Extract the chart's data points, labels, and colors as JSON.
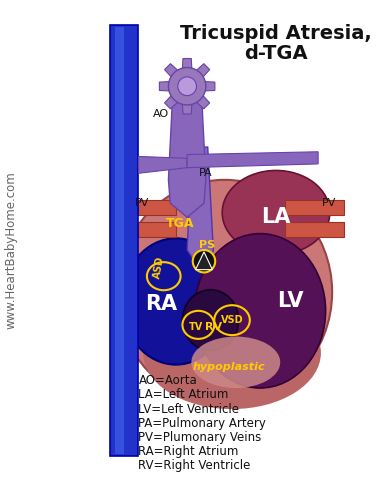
{
  "title_line1": "Tricuspid Atresia,",
  "title_line2": "d-TGA",
  "bg_color": "#ffffff",
  "legend_lines": [
    "AO=Aorta",
    "LA=Left Atrium",
    "LV=Left Ventricle",
    "PA=Pulmonary Artery",
    "PV=Plumonary Veins",
    "RA=Right Atrium",
    "RV=Right Ventricle"
  ],
  "watermark": "www.HeartBabyHome.com",
  "heart_pink": "#cc7777",
  "heart_dark_red": "#993355",
  "ra_blue": "#111199",
  "lv_purple": "#551155",
  "rv_dark": "#331144",
  "la_dark": "#883355",
  "aorta_purple": "#8866bb",
  "pa_med_purple": "#9977cc",
  "pv_red": "#cc5544",
  "blue_vessel": "#2233cc",
  "blue_vessel_light": "#4466ee",
  "gear_color": "#9977bb",
  "gear_edge": "#6644aa",
  "label_yellow": "#ffcc00",
  "label_white": "#ffffff",
  "label_black": "#111111",
  "label_gray": "#444444"
}
